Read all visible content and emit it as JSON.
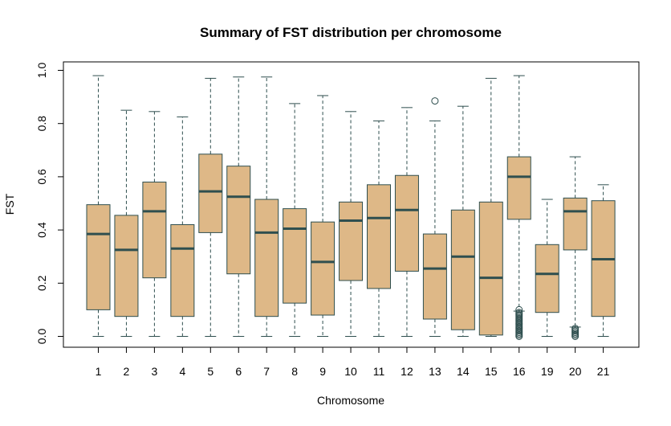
{
  "chart_data": {
    "type": "box",
    "title": "Summary of FST distribution per chromosome",
    "xlabel": "Chromosome",
    "ylabel": "FST",
    "ylim": [
      0.0,
      1.0
    ],
    "yticks": [
      "0.0",
      "0.2",
      "0.4",
      "0.6",
      "0.8",
      "1.0"
    ],
    "colors": {
      "box_fill": "#DEB887",
      "median": "#2F4F4F",
      "whisker": "#2F4F4F",
      "border": "#2F4F4F"
    },
    "categories": [
      "1",
      "2",
      "3",
      "4",
      "5",
      "6",
      "7",
      "8",
      "9",
      "10",
      "11",
      "12",
      "13",
      "14",
      "15",
      "16",
      "19",
      "20",
      "21"
    ],
    "boxes": [
      {
        "label": "1",
        "min": 0.0,
        "q1": 0.1,
        "median": 0.385,
        "q3": 0.495,
        "max": 0.98,
        "outliers": []
      },
      {
        "label": "2",
        "min": 0.0,
        "q1": 0.075,
        "median": 0.325,
        "q3": 0.455,
        "max": 0.85,
        "outliers": []
      },
      {
        "label": "3",
        "min": 0.0,
        "q1": 0.22,
        "median": 0.47,
        "q3": 0.58,
        "max": 0.845,
        "outliers": []
      },
      {
        "label": "4",
        "min": 0.0,
        "q1": 0.075,
        "median": 0.33,
        "q3": 0.42,
        "max": 0.825,
        "outliers": []
      },
      {
        "label": "5",
        "min": 0.0,
        "q1": 0.39,
        "median": 0.545,
        "q3": 0.685,
        "max": 0.97,
        "outliers": []
      },
      {
        "label": "6",
        "min": 0.0,
        "q1": 0.235,
        "median": 0.525,
        "q3": 0.64,
        "max": 0.975,
        "outliers": []
      },
      {
        "label": "7",
        "min": 0.0,
        "q1": 0.075,
        "median": 0.39,
        "q3": 0.515,
        "max": 0.975,
        "outliers": []
      },
      {
        "label": "8",
        "min": 0.0,
        "q1": 0.125,
        "median": 0.405,
        "q3": 0.48,
        "max": 0.875,
        "outliers": []
      },
      {
        "label": "9",
        "min": 0.0,
        "q1": 0.08,
        "median": 0.28,
        "q3": 0.43,
        "max": 0.905,
        "outliers": []
      },
      {
        "label": "10",
        "min": 0.0,
        "q1": 0.21,
        "median": 0.435,
        "q3": 0.505,
        "max": 0.845,
        "outliers": []
      },
      {
        "label": "11",
        "min": 0.0,
        "q1": 0.18,
        "median": 0.445,
        "q3": 0.57,
        "max": 0.81,
        "outliers": []
      },
      {
        "label": "12",
        "min": 0.0,
        "q1": 0.245,
        "median": 0.475,
        "q3": 0.605,
        "max": 0.86,
        "outliers": []
      },
      {
        "label": "13",
        "min": 0.0,
        "q1": 0.065,
        "median": 0.255,
        "q3": 0.385,
        "max": 0.81,
        "outliers": [
          0.885
        ]
      },
      {
        "label": "14",
        "min": 0.0,
        "q1": 0.025,
        "median": 0.3,
        "q3": 0.475,
        "max": 0.865,
        "outliers": []
      },
      {
        "label": "15",
        "min": 0.0,
        "q1": 0.005,
        "median": 0.22,
        "q3": 0.505,
        "max": 0.97,
        "outliers": []
      },
      {
        "label": "16",
        "min": 0.095,
        "q1": 0.44,
        "median": 0.6,
        "q3": 0.675,
        "max": 0.98,
        "outliers": [
          0.0,
          0.005,
          0.01,
          0.015,
          0.02,
          0.025,
          0.03,
          0.035,
          0.04,
          0.045,
          0.05,
          0.055,
          0.06,
          0.065,
          0.07,
          0.075,
          0.08,
          0.085,
          0.09,
          0.1
        ]
      },
      {
        "label": "19",
        "min": 0.0,
        "q1": 0.09,
        "median": 0.235,
        "q3": 0.345,
        "max": 0.515,
        "outliers": []
      },
      {
        "label": "20",
        "min": 0.035,
        "q1": 0.325,
        "median": 0.47,
        "q3": 0.52,
        "max": 0.675,
        "outliers": [
          0.0,
          0.005,
          0.01,
          0.015,
          0.02,
          0.025,
          0.03
        ]
      },
      {
        "label": "21",
        "min": 0.0,
        "q1": 0.075,
        "median": 0.29,
        "q3": 0.51,
        "max": 0.57,
        "outliers": []
      }
    ]
  }
}
